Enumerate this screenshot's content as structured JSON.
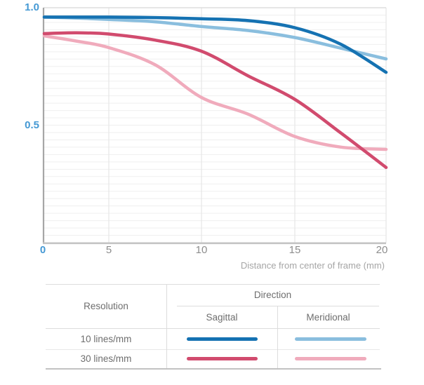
{
  "chart_data": {
    "type": "line",
    "title": "",
    "xlabel": "Distance from center of frame (mm)",
    "ylabel": "",
    "xlim": [
      0,
      20
    ],
    "ylim": [
      0,
      1.0
    ],
    "x_ticks": [
      5,
      10,
      15,
      20
    ],
    "x_tick_labels": [
      "5",
      "10",
      "15",
      "20"
    ],
    "y_ticks": [
      1.0,
      0.5,
      0
    ],
    "y_tick_labels": [
      "1.0",
      "0.5",
      "0"
    ],
    "grid": "light minor horizontal lines; vertical lines at x ticks",
    "legend_position": "table below chart",
    "x": [
      0,
      2.5,
      5,
      7.5,
      10,
      12.5,
      15,
      17.5,
      20
    ],
    "series": [
      {
        "name": "10 lines/mm Sagittal",
        "color": "#1572b2",
        "values": [
          0.96,
          0.96,
          0.96,
          0.958,
          0.953,
          0.945,
          0.915,
          0.845,
          0.725
        ]
      },
      {
        "name": "10 lines/mm Meridional",
        "color": "#8abede",
        "values": [
          0.96,
          0.956,
          0.95,
          0.94,
          0.92,
          0.903,
          0.873,
          0.828,
          0.782
        ]
      },
      {
        "name": "30 lines/mm Sagittal",
        "color": "#d14b6e",
        "values": [
          0.89,
          0.893,
          0.888,
          0.862,
          0.815,
          0.71,
          0.61,
          0.468,
          0.32
        ]
      },
      {
        "name": "30 lines/mm Meridional",
        "color": "#f0abbc",
        "values": [
          0.88,
          0.858,
          0.83,
          0.757,
          0.618,
          0.547,
          0.452,
          0.407,
          0.397
        ]
      }
    ]
  },
  "legend_table": {
    "resolution_header": "Resolution",
    "direction_header": "Direction",
    "columns": [
      "Sagittal",
      "Meridional"
    ],
    "rows": [
      {
        "label": "10 lines/mm",
        "sagittal_series": 0,
        "meridional_series": 1
      },
      {
        "label": "30 lines/mm",
        "sagittal_series": 2,
        "meridional_series": 3
      }
    ]
  },
  "colors": {
    "y_label_blue": "#4599d4",
    "x_tick_gray": "#8d8d8d",
    "caption_gray": "#a5a5a5",
    "table_text_gray": "#6e6e6e"
  }
}
